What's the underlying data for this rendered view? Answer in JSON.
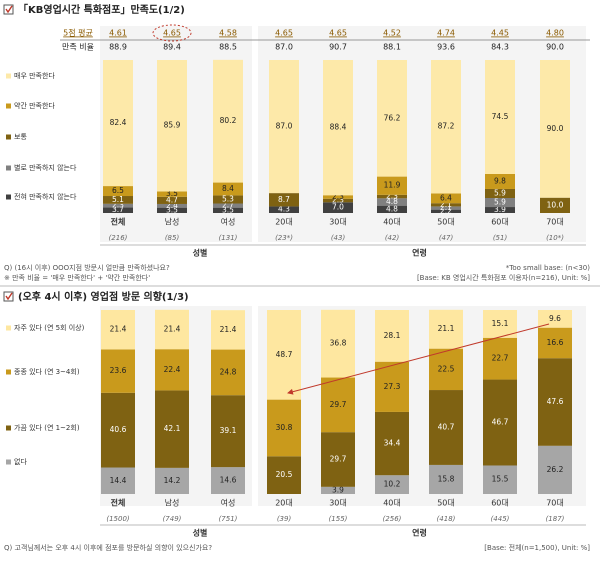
{
  "chart_data": [
    {
      "type": "bar",
      "stacked": true,
      "title": "「KB영업시간 특화점포」만족도(1/2)",
      "categories": [
        "전체",
        "남성",
        "여성",
        "20대",
        "30대",
        "40대",
        "50대",
        "60대",
        "70대"
      ],
      "sample_sizes": [
        "(216)",
        "(85)",
        "(131)",
        "(23*)",
        "(43)",
        "(42)",
        "(47)",
        "(51)",
        "(10*)"
      ],
      "groups": [
        "성별",
        "연령"
      ],
      "summary_rows": [
        {
          "label": "5점 평균",
          "values": [
            4.61,
            4.65,
            4.58,
            4.65,
            4.65,
            4.52,
            4.74,
            4.45,
            4.8
          ],
          "value_labels": [
            "4.61",
            "4.65",
            "4.58",
            "4.65",
            "4.65",
            "4.52",
            "4.74",
            "4.45",
            "4.80"
          ]
        },
        {
          "label": "만족 비율",
          "values": [
            88.9,
            89.4,
            88.5,
            87,
            90.7,
            88.1,
            93.6,
            84.3,
            90
          ],
          "value_labels": [
            "88.9",
            "89.4",
            "88.5",
            "87.0",
            "90.7",
            "88.1",
            "93.6",
            "84.3",
            "90.0"
          ]
        }
      ],
      "ylim": [
        0,
        100
      ],
      "series": [
        {
          "name": "매우 만족한다",
          "color": "#fde9a9",
          "values": [
            82.4,
            85.9,
            80.2,
            87,
            88.4,
            76.2,
            87.2,
            74.5,
            90
          ],
          "value_labels": [
            "82.4",
            "85.9",
            "80.2",
            "87.0",
            "88.4",
            "76.2",
            "87.2",
            "74.5",
            "90.0"
          ]
        },
        {
          "name": "약간 만족한다",
          "color": "#c99a1c",
          "values": [
            6.5,
            3.5,
            8.4,
            0,
            2.3,
            11.9,
            6.4,
            9.8,
            0
          ],
          "value_labels": [
            "6.5",
            "3.5",
            "8.4",
            null,
            "2.3",
            "11.9",
            "6.4",
            "9.8",
            null
          ]
        },
        {
          "name": "보통",
          "color": "#7f6212",
          "values": [
            5.1,
            4.7,
            5.3,
            8.7,
            2.3,
            2.3,
            2.1,
            5.9,
            10
          ],
          "value_labels": [
            "5.1",
            "4.7",
            "5.3",
            "8.7",
            "2.3",
            "2.3",
            "2.1",
            "5.9",
            "10.0"
          ]
        },
        {
          "name": "별로 만족하지 않는다",
          "color": "#808080",
          "values": [
            2.3,
            2.4,
            2.7,
            0,
            0,
            4.8,
            2.1,
            5.9,
            0
          ],
          "value_labels": [
            "2.3",
            "2.4",
            "2.7",
            null,
            null,
            "4.8",
            "2.1",
            "5.9",
            null
          ]
        },
        {
          "name": "전혀 만족하지 않는다",
          "color": "#404040",
          "values": [
            3.7,
            3.5,
            3.5,
            4.3,
            7,
            4.8,
            2.2,
            3.9,
            0
          ],
          "value_labels": [
            "3.7",
            "3.5",
            "3.5",
            "4.3",
            "7.0",
            "4.8",
            "2.2",
            "3.9",
            null
          ]
        }
      ],
      "footnotes": [
        "Q) (16시 이후) OOO지점 방문시 얼만큼 만족하셨나요?",
        "※ 만족 비율 = '매우 만족한다' + '약간 만족한다'"
      ],
      "base_notes": [
        "*Too small base: (n<30)",
        "[Base: KB 영업시간 특화점포 이용자(n=216), Unit: %]"
      ]
    },
    {
      "type": "bar",
      "stacked": true,
      "title": "(오후 4시 이후) 영업점 방문 의향(1/3)",
      "categories": [
        "전체",
        "남성",
        "여성",
        "20대",
        "30대",
        "40대",
        "50대",
        "60대",
        "70대"
      ],
      "sample_sizes": [
        "(1500)",
        "(749)",
        "(751)",
        "(39)",
        "(155)",
        "(256)",
        "(418)",
        "(445)",
        "(187)"
      ],
      "groups": [
        "성별",
        "연령"
      ],
      "summary_rows": [],
      "ylim": [
        0,
        100
      ],
      "series": [
        {
          "name": "자주 있다 (연 5회 이상)",
          "color": "#fee7a0",
          "values": [
            21.4,
            21.4,
            21.4,
            48.7,
            36.8,
            28.1,
            21.1,
            15.1,
            9.6
          ]
        },
        {
          "name": "종종 있다 (연 3~4회)",
          "color": "#c99a1c",
          "values": [
            23.6,
            22.4,
            24.8,
            30.8,
            29.7,
            27.3,
            22.5,
            22.7,
            16.6
          ]
        },
        {
          "name": "가끔 있다 (연 1~2회)",
          "color": "#7f6212",
          "values": [
            40.6,
            42.1,
            39.1,
            20.5,
            29.7,
            34.4,
            40.7,
            46.7,
            47.6
          ]
        },
        {
          "name": "없다",
          "color": "#a6a6a6",
          "values": [
            14.4,
            14.2,
            14.6,
            0,
            3.9,
            10.2,
            15.8,
            15.5,
            26.2
          ]
        }
      ],
      "footnotes": [
        "Q) 고객님께서는 오후 4시 이후에 점포를 방문하실 의향이 있으신가요?"
      ],
      "base_notes": [
        "[Base: 전체(n=1,500), Unit: %]"
      ]
    }
  ]
}
